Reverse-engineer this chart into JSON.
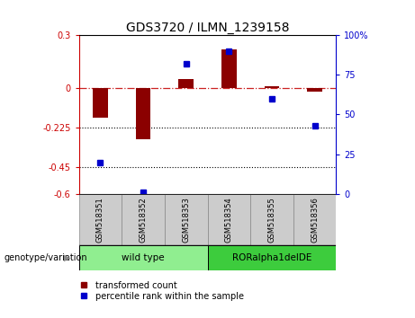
{
  "title": "GDS3720 / ILMN_1239158",
  "samples": [
    "GSM518351",
    "GSM518352",
    "GSM518353",
    "GSM518354",
    "GSM518355",
    "GSM518356"
  ],
  "red_bars": [
    -0.17,
    -0.29,
    0.05,
    0.22,
    0.01,
    -0.02
  ],
  "blue_squares_pct": [
    20,
    1,
    82,
    90,
    60,
    43
  ],
  "ylim_left": [
    -0.6,
    0.3
  ],
  "ylim_right": [
    0,
    100
  ],
  "yticks_left": [
    0.3,
    0,
    -0.225,
    -0.45,
    -0.6
  ],
  "yticks_right": [
    100,
    75,
    50,
    25,
    0
  ],
  "hlines_dotted": [
    -0.225,
    -0.45
  ],
  "hline_dashed": 0,
  "groups": [
    {
      "label": "wild type",
      "samples": [
        0,
        1,
        2
      ],
      "color": "#90ee90"
    },
    {
      "label": "RORalpha1delDE",
      "samples": [
        3,
        4,
        5
      ],
      "color": "#3dcc3d"
    }
  ],
  "group_label_prefix": "genotype/variation",
  "legend_red": "transformed count",
  "legend_blue": "percentile rank within the sample",
  "red_color": "#8B0000",
  "blue_color": "#0000CC",
  "bar_width": 0.35,
  "bg_color": "#ffffff",
  "plot_bg": "#ffffff",
  "sample_box_bg": "#c8c8c8",
  "left_axis_color": "#cc0000",
  "right_axis_color": "#0000cc"
}
